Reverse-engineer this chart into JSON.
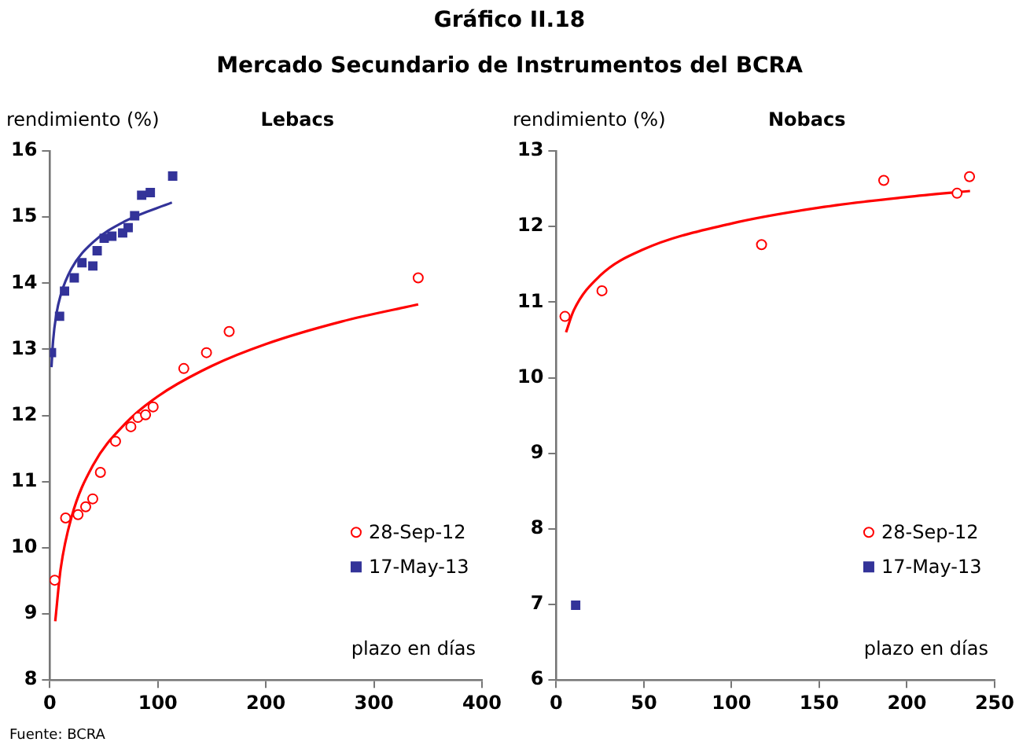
{
  "chart_data": [
    {
      "type": "scatter",
      "title": "Lebacs",
      "xlabel": "plazo en días",
      "ylabel": "rendimiento (%)",
      "xlim": [
        0,
        400
      ],
      "xticks": [
        0,
        100,
        200,
        300,
        400
      ],
      "ylim": [
        8,
        16
      ],
      "yticks": [
        8,
        9,
        10,
        11,
        12,
        13,
        14,
        15,
        16
      ],
      "grid": false,
      "legend": "bottom right",
      "annotations": [
        "Gráfico II.18",
        "Mercado Secundario de Instrumentos del BCRA",
        "Fuente: BCRA"
      ],
      "series": [
        {
          "name": "28-Sep-12",
          "type": "scatter",
          "marker": "circle",
          "color": "#ff0000",
          "x": [
            4.5,
            14.6,
            26.1,
            33.2,
            39.7,
            46.8,
            60.8,
            75,
            81.5,
            88.6,
            95.6,
            124,
            145,
            166,
            341
          ],
          "values": [
            9.51,
            10.45,
            10.5,
            10.62,
            10.74,
            11.14,
            11.61,
            11.83,
            11.97,
            12.01,
            12.13,
            12.71,
            12.95,
            13.27,
            14.08
          ]
        },
        {
          "name": "17-May-13",
          "type": "scatter",
          "marker": "square",
          "color": "#333399",
          "x": [
            1.5,
            9,
            13.6,
            22.6,
            29.7,
            39.8,
            43.8,
            50.3,
            57.4,
            67.4,
            72.5,
            78.5,
            85,
            93,
            113.7
          ],
          "values": [
            12.95,
            13.5,
            13.88,
            14.08,
            14.31,
            14.26,
            14.49,
            14.68,
            14.71,
            14.76,
            14.84,
            15.02,
            15.33,
            15.37,
            15.62
          ]
        },
        {
          "type": "line",
          "marker": "none",
          "color": "#ff0000",
          "x": [
            5,
            10,
            20,
            40,
            70,
            100,
            150,
            200,
            270,
            341
          ],
          "values": [
            8.89,
            9.68,
            10.46,
            11.25,
            11.88,
            12.29,
            12.75,
            13.08,
            13.42,
            13.68
          ]
        },
        {
          "type": "line",
          "marker": "none",
          "color": "#333399",
          "x": [
            1.5,
            3,
            6,
            10,
            20,
            40,
            70,
            113
          ],
          "values": [
            12.73,
            13.13,
            13.53,
            13.82,
            14.22,
            14.62,
            14.94,
            15.22
          ]
        }
      ]
    },
    {
      "type": "scatter",
      "title": "Nobacs",
      "xlabel": "plazo en días",
      "ylabel": "rendimiento (%)",
      "xlim": [
        0,
        250
      ],
      "xticks": [
        0,
        50,
        100,
        150,
        200,
        250
      ],
      "ylim": [
        6,
        13
      ],
      "yticks": [
        6,
        7,
        8,
        9,
        10,
        11,
        12,
        13
      ],
      "grid": false,
      "legend": "bottom right",
      "series": [
        {
          "name": "28-Sep-12",
          "type": "scatter",
          "marker": "circle",
          "color": "#ff0000",
          "x": [
            5,
            26.1,
            117.1,
            186.8,
            228.6,
            235.7
          ],
          "values": [
            10.81,
            11.15,
            11.76,
            12.61,
            12.44,
            12.66
          ]
        },
        {
          "name": "17-May-13",
          "type": "scatter",
          "marker": "square",
          "color": "#333399",
          "x": [
            11.1
          ],
          "values": [
            6.99
          ]
        },
        {
          "type": "line",
          "marker": "none",
          "color": "#ff0000",
          "x": [
            5.6,
            10,
            25,
            50,
            100,
            150,
            200,
            236
          ],
          "values": [
            10.6,
            10.89,
            11.35,
            11.7,
            12.04,
            12.25,
            12.39,
            12.47
          ]
        }
      ]
    }
  ]
}
